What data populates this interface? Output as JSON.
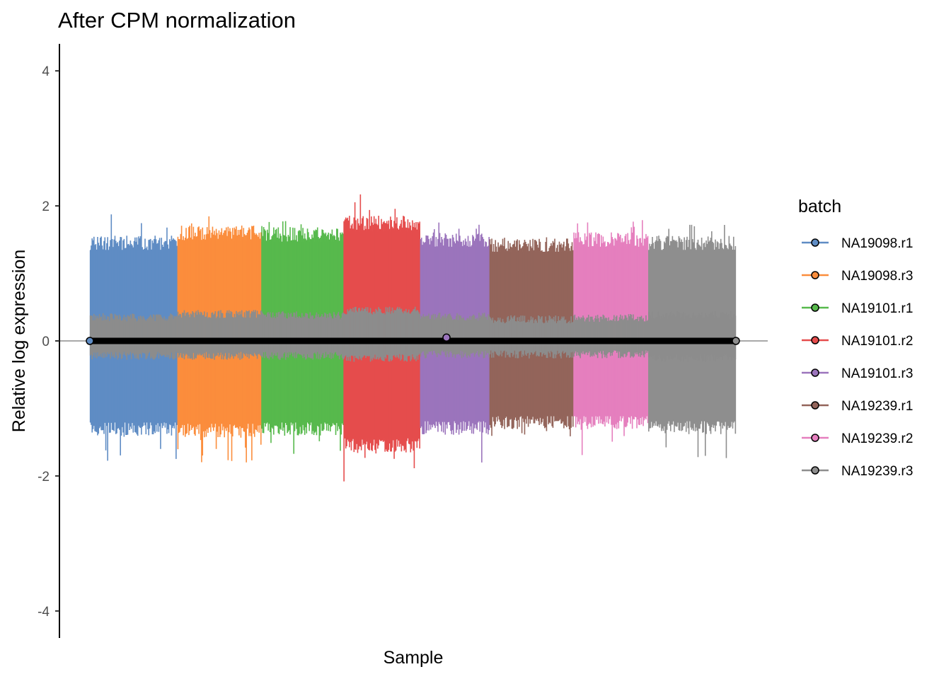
{
  "chart_data": {
    "type": "line",
    "title": "After CPM normalization",
    "xlabel": "Sample",
    "ylabel": "Relative log expression",
    "ylim": [
      -4.4,
      4.4
    ],
    "yticks": [
      -4,
      -2,
      0,
      2,
      4
    ],
    "x_ticks_shown": false,
    "reference_line_y": 0,
    "grid": false,
    "legend": {
      "title": "batch",
      "position": "right"
    },
    "inner_band_color": "#8c8c8c",
    "median_line_color": "#000000",
    "series": [
      {
        "name": "NA19098.r1",
        "color": "#5f8cc4",
        "n_samples": 96,
        "whisker_high": 1.45,
        "whisker_low": -1.3,
        "whisker_high_max": 1.93,
        "whisker_low_min": -1.82,
        "box_high": 0.35,
        "box_low": -0.22,
        "median": 0.0
      },
      {
        "name": "NA19098.r3",
        "color": "#fb8d3c",
        "n_samples": 92,
        "whisker_high": 1.6,
        "whisker_low": -1.32,
        "whisker_high_max": 1.86,
        "whisker_low_min": -1.82,
        "box_high": 0.4,
        "box_low": -0.22,
        "median": 0.0
      },
      {
        "name": "NA19101.r1",
        "color": "#57b94c",
        "n_samples": 90,
        "whisker_high": 1.58,
        "whisker_low": -1.3,
        "whisker_high_max": 1.84,
        "whisker_low_min": -1.68,
        "box_high": 0.38,
        "box_low": -0.22,
        "median": 0.0
      },
      {
        "name": "NA19101.r2",
        "color": "#e54c4c",
        "n_samples": 84,
        "whisker_high": 1.75,
        "whisker_low": -1.55,
        "whisker_high_max": 2.25,
        "whisker_low_min": -2.15,
        "box_high": 0.45,
        "box_low": -0.25,
        "median": 0.0
      },
      {
        "name": "NA19101.r3",
        "color": "#9b74bc",
        "n_samples": 76,
        "whisker_high": 1.5,
        "whisker_low": -1.28,
        "whisker_high_max": 1.8,
        "whisker_low_min": -1.9,
        "box_high": 0.36,
        "box_low": -0.2,
        "median": 0.0
      },
      {
        "name": "NA19239.r1",
        "color": "#93645a",
        "n_samples": 92,
        "whisker_high": 1.42,
        "whisker_low": -1.2,
        "whisker_high_max": 1.55,
        "whisker_low_min": -1.42,
        "box_high": 0.32,
        "box_low": -0.2,
        "median": 0.0
      },
      {
        "name": "NA19239.r2",
        "color": "#e57fbe",
        "n_samples": 82,
        "whisker_high": 1.5,
        "whisker_low": -1.2,
        "whisker_high_max": 1.8,
        "whisker_low_min": -1.78,
        "box_high": 0.34,
        "box_low": -0.2,
        "median": 0.0
      },
      {
        "name": "NA19239.r3",
        "color": "#8e8e8e",
        "n_samples": 96,
        "whisker_high": 1.45,
        "whisker_low": -1.28,
        "whisker_high_max": 1.72,
        "whisker_low_min": -1.8,
        "box_high": 0.38,
        "box_low": -0.25,
        "median": 0.0
      }
    ]
  }
}
